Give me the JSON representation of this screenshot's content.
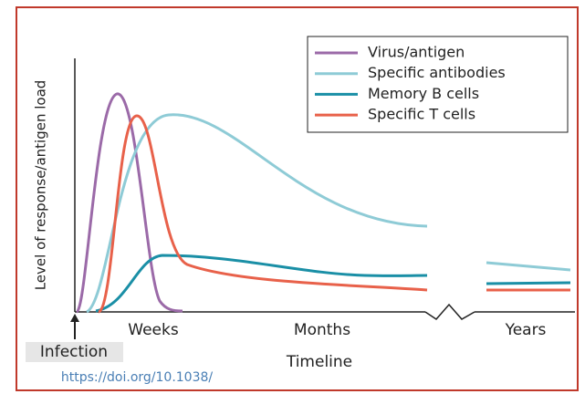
{
  "y_axis_label": "Level of response/antigen load",
  "legend": [
    {
      "name": "Virus/antigen",
      "color": "#9b6aa8"
    },
    {
      "name": "Specific antibodies",
      "color": "#8ecbd6"
    },
    {
      "name": "Memory B cells",
      "color": "#1a8fa6"
    },
    {
      "name": "Specific T cells",
      "color": "#e8614a"
    }
  ],
  "x_labels": [
    "Weeks",
    "Months",
    "Years"
  ],
  "x_axis_label": "Timeline",
  "annotation": "Infection",
  "source": "https://doi.org/10.1038/"
}
